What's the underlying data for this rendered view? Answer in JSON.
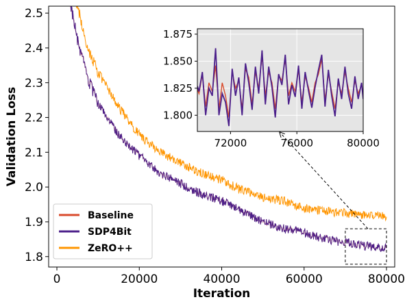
{
  "chart_data": [
    {
      "type": "line",
      "title": "",
      "xlabel": "Iteration",
      "ylabel": "Validation Loss",
      "xlim": [
        -2000,
        82000
      ],
      "ylim": [
        1.77,
        2.52
      ],
      "xticks": [
        0,
        20000,
        40000,
        60000,
        80000
      ],
      "yticks": [
        1.8,
        1.9,
        2.0,
        2.1,
        2.2,
        2.3,
        2.4,
        2.5
      ],
      "xtick_labels": [
        "0",
        "20000",
        "40000",
        "60000",
        "80000"
      ],
      "ytick_labels": [
        "1.8",
        "1.9",
        "2.0",
        "2.1",
        "2.2",
        "2.3",
        "2.4",
        "2.5"
      ],
      "grid": false,
      "legend": {
        "placement": "bottom-left"
      },
      "x": [
        3000,
        5000,
        7500,
        10000,
        15000,
        20000,
        25000,
        30000,
        35000,
        40000,
        45000,
        50000,
        55000,
        60000,
        65000,
        70000,
        75000,
        80000
      ],
      "series": [
        {
          "name": "Baseline",
          "color": "#d94a2b",
          "values": [
            2.55,
            2.42,
            2.31,
            2.24,
            2.15,
            2.09,
            2.04,
            2.01,
            1.98,
            1.96,
            1.93,
            1.9,
            1.88,
            1.87,
            1.85,
            1.84,
            1.83,
            1.825
          ]
        },
        {
          "name": "SDP4Bit",
          "color": "#4b1f8a",
          "values": [
            2.55,
            2.42,
            2.31,
            2.24,
            2.15,
            2.09,
            2.04,
            2.01,
            1.98,
            1.96,
            1.93,
            1.9,
            1.88,
            1.87,
            1.85,
            1.84,
            1.83,
            1.825
          ]
        },
        {
          "name": "ZeRO++",
          "color": "#ff9500",
          "values": [
            2.6,
            2.52,
            2.4,
            2.33,
            2.23,
            2.15,
            2.1,
            2.07,
            2.04,
            2.02,
            1.99,
            1.97,
            1.96,
            1.94,
            1.93,
            1.925,
            1.92,
            1.915
          ]
        }
      ],
      "annotations": [
        "zoom box around iterations 70000-80000 with arrow to inset"
      ]
    },
    {
      "type": "line",
      "title": "",
      "xlabel": "",
      "ylabel": "",
      "xlim": [
        70000,
        80000
      ],
      "ylim": [
        1.785,
        1.88
      ],
      "xticks": [
        72000,
        76000,
        80000
      ],
      "yticks": [
        1.8,
        1.825,
        1.85,
        1.875
      ],
      "xtick_labels": [
        "72000",
        "76000",
        "80000"
      ],
      "ytick_labels": [
        "1.800",
        "1.825",
        "1.850",
        "1.875"
      ],
      "grid": true,
      "background": "#e5e5e5",
      "x": [
        70000,
        70100,
        70300,
        70500,
        70700,
        70900,
        71100,
        71300,
        71500,
        71700,
        71900,
        72100,
        72300,
        72500,
        72700,
        72900,
        73100,
        73300,
        73500,
        73700,
        73900,
        74100,
        74300,
        74500,
        74700,
        74900,
        75100,
        75300,
        75500,
        75700,
        75900,
        76100,
        76300,
        76500,
        76700,
        76900,
        77100,
        77300,
        77500,
        77700,
        77900,
        78100,
        78300,
        78500,
        78700,
        78900,
        79100,
        79300,
        79500,
        79700,
        79900,
        80000
      ],
      "series": [
        {
          "name": "Baseline",
          "color": "#d94a2b",
          "values": [
            1.824,
            1.82,
            1.838,
            1.808,
            1.83,
            1.822,
            1.846,
            1.806,
            1.83,
            1.818,
            1.798,
            1.84,
            1.825,
            1.832,
            1.806,
            1.843,
            1.835,
            1.81,
            1.84,
            1.825,
            1.855,
            1.818,
            1.84,
            1.83,
            1.806,
            1.837,
            1.832,
            1.852,
            1.818,
            1.83,
            1.822,
            1.842,
            1.812,
            1.836,
            1.826,
            1.812,
            1.83,
            1.838,
            1.852,
            1.814,
            1.838,
            1.822,
            1.806,
            1.83,
            1.82,
            1.84,
            1.825,
            1.812,
            1.832,
            1.82,
            1.828,
            1.818
          ]
        },
        {
          "name": "SDP4Bit",
          "color": "#4b1f8a",
          "values": [
            1.827,
            1.822,
            1.84,
            1.8,
            1.825,
            1.818,
            1.862,
            1.8,
            1.82,
            1.812,
            1.79,
            1.843,
            1.818,
            1.835,
            1.8,
            1.848,
            1.83,
            1.805,
            1.845,
            1.82,
            1.86,
            1.81,
            1.845,
            1.826,
            1.798,
            1.838,
            1.828,
            1.856,
            1.81,
            1.828,
            1.817,
            1.846,
            1.806,
            1.84,
            1.823,
            1.807,
            1.826,
            1.842,
            1.856,
            1.808,
            1.842,
            1.818,
            1.799,
            1.834,
            1.815,
            1.845,
            1.82,
            1.806,
            1.836,
            1.815,
            1.83,
            1.815
          ]
        }
      ]
    }
  ]
}
